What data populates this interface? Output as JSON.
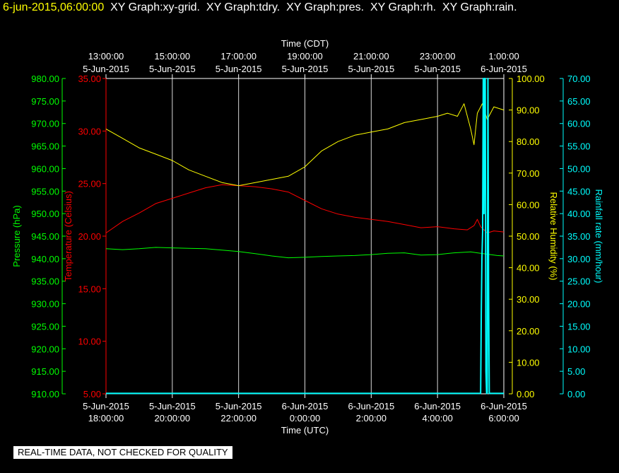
{
  "header": {
    "timestamp": "6-jun-2015,06:00:00",
    "layers": [
      "XY Graph:xy-grid.",
      "XY Graph:tdry.",
      "XY Graph:pres.",
      "XY Graph:rh.",
      "XY Graph:rain."
    ]
  },
  "footer": {
    "quality_note": "REAL-TIME DATA, NOT CHECKED FOR QUALITY"
  },
  "colors": {
    "background": "#000000",
    "grid": "#ffffff",
    "pressure": "#00ff00",
    "temperature": "#ff0000",
    "humidity": "#ffff00",
    "rainfall": "#00ffff"
  },
  "chart_data": {
    "type": "line",
    "grid": true,
    "x_top": {
      "label": "Time (CDT)",
      "ticks": [
        {
          "time": "13:00:00",
          "date": "5-Jun-2015"
        },
        {
          "time": "15:00:00",
          "date": "5-Jun-2015"
        },
        {
          "time": "17:00:00",
          "date": "5-Jun-2015"
        },
        {
          "time": "19:00:00",
          "date": "5-Jun-2015"
        },
        {
          "time": "21:00:00",
          "date": "5-Jun-2015"
        },
        {
          "time": "23:00:00",
          "date": "5-Jun-2015"
        },
        {
          "time": "1:00:00",
          "date": "6-Jun-2015"
        }
      ]
    },
    "x_bottom": {
      "label": "Time (UTC)",
      "range": [
        "5-Jun-2015 18:00:00",
        "6-Jun-2015 06:00:00"
      ],
      "ticks": [
        {
          "date": "5-Jun-2015",
          "time": "18:00:00"
        },
        {
          "date": "5-Jun-2015",
          "time": "20:00:00"
        },
        {
          "date": "5-Jun-2015",
          "time": "22:00:00"
        },
        {
          "date": "6-Jun-2015",
          "time": "0:00:00"
        },
        {
          "date": "6-Jun-2015",
          "time": "2:00:00"
        },
        {
          "date": "6-Jun-2015",
          "time": "4:00:00"
        },
        {
          "date": "6-Jun-2015",
          "time": "6:00:00"
        }
      ]
    },
    "axes": {
      "pressure": {
        "label": "Pressure (hPa)",
        "range": [
          910,
          980
        ],
        "ticks": [
          "910.00",
          "915.00",
          "920.00",
          "925.00",
          "930.00",
          "935.00",
          "940.00",
          "945.00",
          "950.00",
          "955.00",
          "960.00",
          "965.00",
          "970.00",
          "975.00",
          "980.00"
        ]
      },
      "temperature": {
        "label": "Temperature (Celsius)",
        "range": [
          5,
          35
        ],
        "ticks": [
          "5.00",
          "10.00",
          "15.00",
          "20.00",
          "25.00",
          "30.00",
          "35.00"
        ]
      },
      "humidity": {
        "label": "Relative Humidity (%)",
        "range": [
          0,
          100
        ],
        "ticks": [
          "0.00",
          "10.00",
          "20.00",
          "30.00",
          "40.00",
          "50.00",
          "60.00",
          "70.00",
          "80.00",
          "90.00",
          "100.00"
        ]
      },
      "rainfall": {
        "label": "Rainfall rate (mm/hour)",
        "range": [
          0,
          70
        ],
        "ticks": [
          "0.00",
          "5.00",
          "10.00",
          "15.00",
          "20.00",
          "25.00",
          "30.00",
          "35.00",
          "40.00",
          "45.00",
          "50.00",
          "55.00",
          "60.00",
          "65.00",
          "70.00"
        ]
      }
    },
    "series": [
      {
        "axis": "pressure",
        "x_hours": [
          0,
          0.5,
          1,
          1.5,
          2,
          2.5,
          3,
          3.5,
          4,
          4.5,
          5,
          5.5,
          6,
          6.5,
          7,
          7.5,
          8,
          8.5,
          9,
          9.5,
          10,
          10.5,
          11,
          11.2,
          11.5,
          11.8,
          12
        ],
        "values": [
          942.2,
          942.0,
          942.2,
          942.5,
          942.4,
          942.3,
          942.2,
          941.9,
          941.6,
          941.1,
          940.6,
          940.2,
          940.3,
          940.5,
          940.6,
          940.7,
          940.9,
          941.2,
          941.3,
          940.8,
          940.9,
          941.3,
          941.5,
          941.3,
          941.0,
          940.7,
          940.6
        ]
      },
      {
        "axis": "temperature",
        "x_hours": [
          0,
          0.5,
          1,
          1.5,
          2,
          2.5,
          3,
          3.5,
          4,
          4.5,
          5,
          5.5,
          6,
          6.5,
          7,
          7.5,
          8,
          8.5,
          9,
          9.5,
          10,
          10.5,
          10.9,
          11.1,
          11.2,
          11.3,
          11.5,
          11.7,
          12
        ],
        "values": [
          20.3,
          21.4,
          22.2,
          23.1,
          23.6,
          24.1,
          24.6,
          24.9,
          24.8,
          24.7,
          24.5,
          24.2,
          23.4,
          22.6,
          22.1,
          21.8,
          21.6,
          21.4,
          21.1,
          20.8,
          20.9,
          20.7,
          20.6,
          21.0,
          21.6,
          20.9,
          20.3,
          20.5,
          20.4
        ]
      },
      {
        "axis": "humidity",
        "x_hours": [
          0,
          0.5,
          1,
          1.5,
          2,
          2.5,
          3,
          3.5,
          4,
          4.5,
          5,
          5.5,
          6,
          6.5,
          7,
          7.5,
          8,
          8.5,
          9,
          9.5,
          10,
          10.3,
          10.6,
          10.8,
          11,
          11.1,
          11.2,
          11.35,
          11.5,
          11.7,
          12
        ],
        "values": [
          84,
          81,
          78,
          76,
          74,
          71,
          69,
          67,
          66,
          67,
          68,
          69,
          72,
          77,
          80,
          82,
          83,
          84,
          86,
          87,
          88,
          89,
          88,
          92,
          84,
          79,
          89,
          92,
          87,
          91,
          90
        ]
      },
      {
        "axis": "rainfall",
        "x_hours": [
          0,
          11.3,
          11.32,
          11.34,
          11.36,
          11.38,
          11.4,
          11.42,
          11.44,
          11.46,
          11.48,
          11.5,
          11.52,
          11.54,
          11.56,
          11.58,
          11.6,
          11.62,
          12
        ],
        "values": [
          0.1,
          0.1,
          18,
          30,
          36,
          70,
          40,
          70,
          70,
          5,
          0.1,
          0.1,
          70,
          25,
          0.1,
          0.1,
          0.1,
          0.1,
          0.1
        ]
      }
    ]
  }
}
